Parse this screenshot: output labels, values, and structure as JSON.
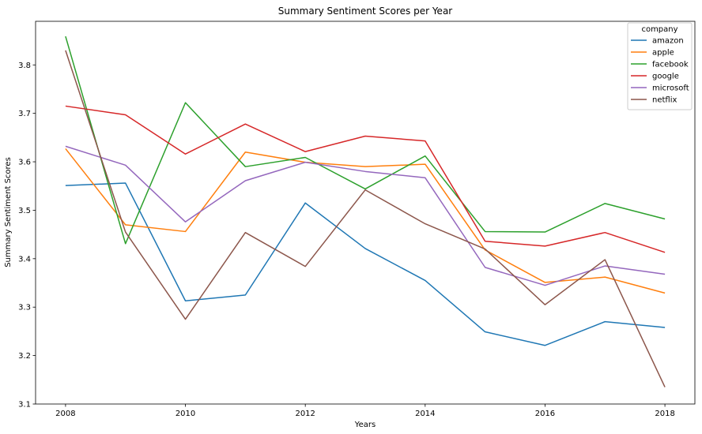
{
  "chart_data": {
    "type": "line",
    "title": "Summary Sentiment Scores per Year",
    "xlabel": "Years",
    "ylabel": "Summary Sentiment Scores",
    "x": [
      2008,
      2009,
      2010,
      2011,
      2012,
      2013,
      2014,
      2015,
      2016,
      2017,
      2018
    ],
    "xticks": [
      2008,
      2010,
      2012,
      2014,
      2016,
      2018
    ],
    "yticks": [
      3.1,
      3.2,
      3.3,
      3.4,
      3.5,
      3.6,
      3.7,
      3.8
    ],
    "xlim": [
      2007.5,
      2018.5
    ],
    "ylim": [
      3.1,
      3.89
    ],
    "grid": false,
    "legend": {
      "title": "company",
      "placement": "top-right"
    },
    "series": [
      {
        "name": "amazon",
        "color": "#1f77b4",
        "values": [
          3.551,
          3.556,
          3.313,
          3.325,
          3.515,
          3.421,
          3.355,
          3.249,
          3.221,
          3.27,
          3.258
        ]
      },
      {
        "name": "apple",
        "color": "#ff7f0e",
        "values": [
          3.627,
          3.47,
          3.456,
          3.62,
          3.599,
          3.59,
          3.595,
          3.418,
          3.351,
          3.362,
          3.329
        ]
      },
      {
        "name": "facebook",
        "color": "#2ca02c",
        "values": [
          3.859,
          3.431,
          3.722,
          3.59,
          3.609,
          3.544,
          3.612,
          3.456,
          3.455,
          3.514,
          3.482
        ]
      },
      {
        "name": "google",
        "color": "#d62728",
        "values": [
          3.715,
          3.697,
          3.616,
          3.678,
          3.621,
          3.653,
          3.643,
          3.436,
          3.426,
          3.454,
          3.413
        ]
      },
      {
        "name": "microsoft",
        "color": "#9467bd",
        "values": [
          3.632,
          3.593,
          3.476,
          3.561,
          3.599,
          3.58,
          3.567,
          3.382,
          3.345,
          3.385,
          3.368
        ]
      },
      {
        "name": "netflix",
        "color": "#8c564b",
        "values": [
          3.83,
          3.455,
          3.275,
          3.454,
          3.384,
          3.542,
          3.472,
          3.42,
          3.305,
          3.398,
          3.135
        ]
      }
    ]
  }
}
